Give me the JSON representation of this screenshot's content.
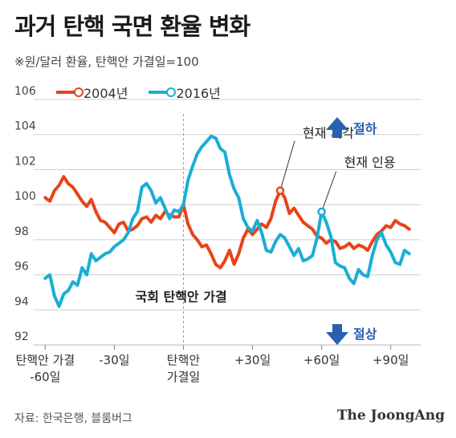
{
  "header": {
    "title": "과거 탄핵 국면 환율 변화",
    "subtitle": "※원/달러 환율, 탄핵안 가결일=100"
  },
  "footer": {
    "source": "자료: 한국은행, 블룸버그",
    "brand": "The JoongAng"
  },
  "colors": {
    "series_2004": "#e8431a",
    "series_2016": "#1aaed6",
    "arrow": "#2a5fb0",
    "grid": "#cfcfcf",
    "text": "#222222"
  },
  "chart_data": {
    "type": "line",
    "title": "과거 탄핵 국면 환율 변화",
    "subtitle": "※원/달러 환율, 탄핵안 가결일=100",
    "ylim": [
      92,
      106
    ],
    "yticks": [
      92,
      94,
      96,
      98,
      100,
      102,
      104,
      106
    ],
    "xlim": [
      -65,
      103
    ],
    "xticks": [
      {
        "x": -60,
        "lines": [
          "탄핵안 가결",
          "-60일"
        ]
      },
      {
        "x": -30,
        "lines": [
          "-30일"
        ]
      },
      {
        "x": 0,
        "lines": [
          "탄핵안",
          "가결일"
        ]
      },
      {
        "x": 30,
        "lines": [
          "+30일"
        ]
      },
      {
        "x": 60,
        "lines": [
          "+60일"
        ]
      },
      {
        "x": 90,
        "lines": [
          "+90일"
        ]
      }
    ],
    "legend_position": "top-left",
    "grid": true,
    "vline_x": 0,
    "series": [
      {
        "name": "2004년",
        "color": "#e8431a",
        "points": [
          [
            -60,
            100.4
          ],
          [
            -58,
            100.2
          ],
          [
            -56,
            100.8
          ],
          [
            -54,
            101.1
          ],
          [
            -52,
            101.6
          ],
          [
            -50,
            101.2
          ],
          [
            -48,
            101.0
          ],
          [
            -46,
            100.6
          ],
          [
            -44,
            100.2
          ],
          [
            -42,
            99.9
          ],
          [
            -40,
            100.3
          ],
          [
            -38,
            99.6
          ],
          [
            -36,
            99.1
          ],
          [
            -34,
            99.0
          ],
          [
            -32,
            98.7
          ],
          [
            -30,
            98.4
          ],
          [
            -28,
            98.9
          ],
          [
            -26,
            99.0
          ],
          [
            -24,
            98.5
          ],
          [
            -22,
            98.6
          ],
          [
            -20,
            98.8
          ],
          [
            -18,
            99.2
          ],
          [
            -16,
            99.3
          ],
          [
            -14,
            99.0
          ],
          [
            -12,
            99.4
          ],
          [
            -10,
            99.2
          ],
          [
            -8,
            99.6
          ],
          [
            -6,
            99.4
          ],
          [
            -4,
            99.3
          ],
          [
            -2,
            99.3
          ],
          [
            0,
            100.0
          ],
          [
            2,
            98.9
          ],
          [
            4,
            98.3
          ],
          [
            6,
            98.0
          ],
          [
            8,
            97.6
          ],
          [
            10,
            97.7
          ],
          [
            12,
            97.2
          ],
          [
            14,
            96.6
          ],
          [
            16,
            96.4
          ],
          [
            18,
            96.8
          ],
          [
            20,
            97.4
          ],
          [
            22,
            96.6
          ],
          [
            24,
            97.2
          ],
          [
            26,
            98.1
          ],
          [
            28,
            98.6
          ],
          [
            30,
            98.3
          ],
          [
            32,
            98.6
          ],
          [
            34,
            98.9
          ],
          [
            36,
            98.7
          ],
          [
            38,
            99.2
          ],
          [
            40,
            100.2
          ],
          [
            42,
            100.8
          ],
          [
            44,
            100.4
          ],
          [
            46,
            99.5
          ],
          [
            48,
            99.8
          ],
          [
            50,
            99.4
          ],
          [
            52,
            99.0
          ],
          [
            54,
            98.8
          ],
          [
            56,
            98.6
          ],
          [
            58,
            98.2
          ],
          [
            60,
            98.1
          ],
          [
            62,
            97.8
          ],
          [
            64,
            98.0
          ],
          [
            66,
            97.9
          ],
          [
            68,
            97.5
          ],
          [
            70,
            97.6
          ],
          [
            72,
            97.8
          ],
          [
            74,
            97.5
          ],
          [
            76,
            97.7
          ],
          [
            78,
            97.6
          ],
          [
            80,
            97.4
          ],
          [
            82,
            97.9
          ],
          [
            84,
            98.3
          ],
          [
            86,
            98.5
          ],
          [
            88,
            98.8
          ],
          [
            90,
            98.7
          ],
          [
            92,
            99.1
          ],
          [
            94,
            98.9
          ],
          [
            96,
            98.8
          ],
          [
            98,
            98.6
          ]
        ]
      },
      {
        "name": "2016년",
        "color": "#1aaed6",
        "points": [
          [
            -60,
            95.8
          ],
          [
            -58,
            96.0
          ],
          [
            -56,
            94.8
          ],
          [
            -54,
            94.2
          ],
          [
            -52,
            94.9
          ],
          [
            -50,
            95.1
          ],
          [
            -48,
            95.6
          ],
          [
            -46,
            95.4
          ],
          [
            -44,
            96.4
          ],
          [
            -42,
            96.0
          ],
          [
            -40,
            97.2
          ],
          [
            -38,
            96.8
          ],
          [
            -36,
            97.0
          ],
          [
            -34,
            97.2
          ],
          [
            -32,
            97.3
          ],
          [
            -30,
            97.6
          ],
          [
            -28,
            97.8
          ],
          [
            -26,
            98.0
          ],
          [
            -24,
            98.4
          ],
          [
            -22,
            99.2
          ],
          [
            -20,
            99.6
          ],
          [
            -18,
            101.0
          ],
          [
            -16,
            101.2
          ],
          [
            -14,
            100.8
          ],
          [
            -12,
            100.1
          ],
          [
            -10,
            100.4
          ],
          [
            -8,
            99.8
          ],
          [
            -6,
            99.2
          ],
          [
            -4,
            99.7
          ],
          [
            -2,
            99.6
          ],
          [
            0,
            100.0
          ],
          [
            2,
            101.4
          ],
          [
            4,
            102.2
          ],
          [
            6,
            102.9
          ],
          [
            8,
            103.3
          ],
          [
            10,
            103.6
          ],
          [
            12,
            103.9
          ],
          [
            14,
            103.8
          ],
          [
            16,
            103.2
          ],
          [
            18,
            103.0
          ],
          [
            20,
            101.7
          ],
          [
            22,
            100.9
          ],
          [
            24,
            100.4
          ],
          [
            26,
            99.2
          ],
          [
            28,
            98.7
          ],
          [
            30,
            98.5
          ],
          [
            32,
            99.1
          ],
          [
            34,
            98.4
          ],
          [
            36,
            97.4
          ],
          [
            38,
            97.3
          ],
          [
            40,
            97.9
          ],
          [
            42,
            98.3
          ],
          [
            44,
            98.1
          ],
          [
            46,
            97.6
          ],
          [
            48,
            97.1
          ],
          [
            50,
            97.5
          ],
          [
            52,
            96.8
          ],
          [
            54,
            96.9
          ],
          [
            56,
            97.1
          ],
          [
            58,
            98.1
          ],
          [
            60,
            99.6
          ],
          [
            62,
            99.0
          ],
          [
            64,
            98.2
          ],
          [
            66,
            96.7
          ],
          [
            68,
            96.5
          ],
          [
            70,
            96.4
          ],
          [
            72,
            95.8
          ],
          [
            74,
            95.5
          ],
          [
            76,
            96.3
          ],
          [
            78,
            96.0
          ],
          [
            80,
            95.9
          ],
          [
            82,
            97.1
          ],
          [
            84,
            98.0
          ],
          [
            86,
            98.4
          ],
          [
            88,
            97.7
          ],
          [
            90,
            97.3
          ],
          [
            92,
            96.7
          ],
          [
            94,
            96.6
          ],
          [
            96,
            97.4
          ],
          [
            98,
            97.2
          ]
        ]
      }
    ],
    "annotations": {
      "vline_label": "국회 탄핵안 가결",
      "current_high": "현재 기각",
      "current_low": "현재 인용",
      "up_label": "절하",
      "down_label": "절상"
    },
    "markers": [
      {
        "series": "2004년",
        "x": 42,
        "y": 100.8,
        "label_key": "current_high"
      },
      {
        "series": "2016년",
        "x": 60,
        "y": 99.6,
        "label_key": "current_low"
      }
    ]
  }
}
